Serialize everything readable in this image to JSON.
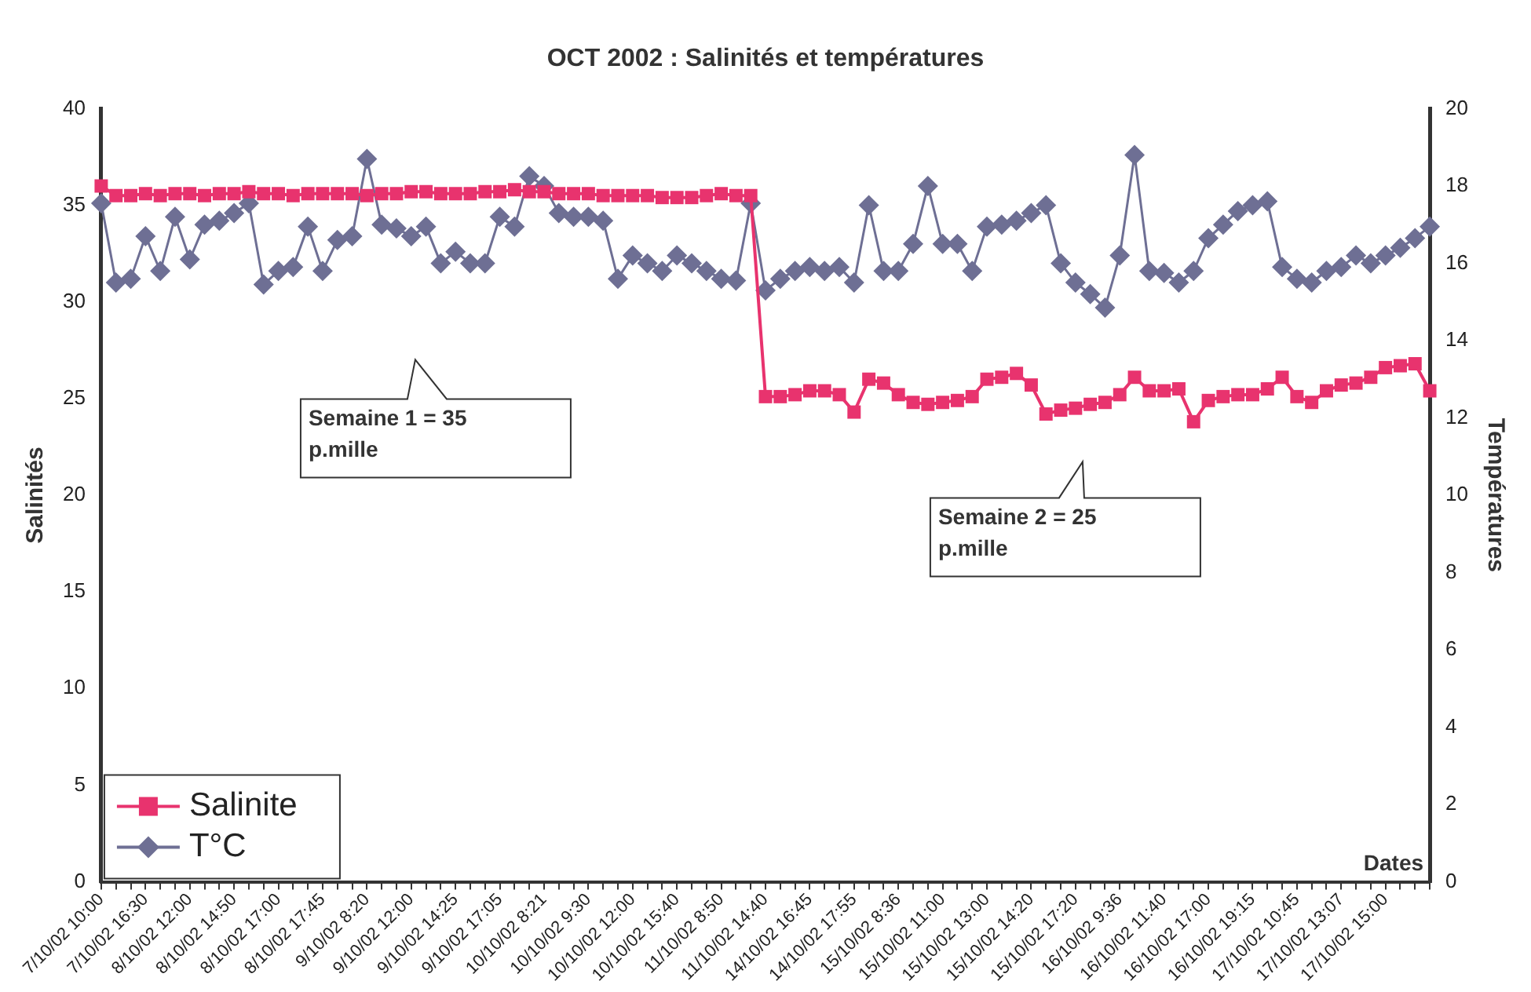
{
  "chart_data": {
    "type": "line",
    "title": "OCT 2002 : Salinités et températures",
    "xlabel": "Dates",
    "ylabel": "Salinités",
    "y2label": "Températures",
    "categories": [
      "7/10/02 10:00",
      null,
      null,
      "7/10/02 16:30",
      null,
      null,
      "8/10/02 12:00",
      null,
      null,
      "8/10/02 14:50",
      null,
      null,
      "8/10/02 17:00",
      null,
      null,
      "8/10/02 17:45",
      null,
      null,
      "9/10/02 8:20",
      null,
      null,
      "9/10/02 12:00",
      null,
      null,
      "9/10/02 14:25",
      null,
      null,
      "9/10/02 17:05",
      null,
      null,
      "10/10/02 8:21",
      null,
      null,
      "10/10/02 9:30",
      null,
      null,
      "10/10/02 12:00",
      null,
      null,
      "10/10/02 15:40",
      null,
      null,
      "11/10/02 8:50",
      null,
      null,
      "11/10/02 14:40",
      null,
      null,
      "14/10/02 16:45",
      null,
      null,
      "14/10/02 17:55",
      null,
      null,
      "15/10/02 8:36",
      null,
      null,
      "15/10/02 11:00",
      null,
      null,
      "15/10/02 13:00",
      null,
      null,
      "15/10/02 14:20",
      null,
      null,
      "15/10/02 17:20",
      null,
      null,
      "16/10/02 9:36",
      null,
      null,
      "16/10/02 11:40",
      null,
      null,
      "16/10/02 17:00",
      null,
      null,
      "16/10/02 19:15",
      null,
      null,
      "17/10/02 10:45",
      null,
      null,
      "17/10/02 13:07",
      null,
      null,
      "17/10/02 15:00",
      null,
      null,
      null
    ],
    "series": [
      {
        "name": "Salinite",
        "color": "#e8336e",
        "marker": "square",
        "values": [
          36,
          35.5,
          35.5,
          35.6,
          35.5,
          35.6,
          35.6,
          35.5,
          35.6,
          35.6,
          35.7,
          35.6,
          35.6,
          35.5,
          35.6,
          35.6,
          35.6,
          35.6,
          35.5,
          35.6,
          35.6,
          35.7,
          35.7,
          35.6,
          35.6,
          35.6,
          35.7,
          35.7,
          35.8,
          35.7,
          35.7,
          35.6,
          35.6,
          35.6,
          35.5,
          35.5,
          35.5,
          35.5,
          35.4,
          35.4,
          35.4,
          35.5,
          35.6,
          35.5,
          35.5,
          25.1,
          25.1,
          25.2,
          25.4,
          25.4,
          25.2,
          24.3,
          26,
          25.8,
          25.2,
          24.8,
          24.7,
          24.8,
          24.9,
          25.1,
          26,
          26.1,
          26.3,
          25.7,
          24.2,
          24.4,
          24.5,
          24.7,
          24.8,
          25.2,
          26.1,
          25.4,
          25.4,
          25.5,
          23.8,
          24.9,
          25.1,
          25.2,
          25.2,
          25.5,
          26.1,
          25.1,
          24.8,
          25.4,
          25.7,
          25.8,
          26.1,
          26.6,
          26.7,
          26.8,
          25.4
        ]
      },
      {
        "name": "T°C",
        "color": "#6e6f94",
        "marker": "diamond",
        "axis": "y2",
        "values": [
          17.55,
          15.5,
          15.6,
          16.7,
          15.8,
          17.2,
          16.1,
          17,
          17.1,
          17.3,
          17.55,
          15.45,
          15.8,
          15.9,
          16.95,
          15.8,
          16.6,
          16.7,
          18.7,
          17,
          16.9,
          16.7,
          16.95,
          16,
          16.3,
          16,
          16,
          17.2,
          16.95,
          18.25,
          18,
          17.3,
          17.2,
          17.2,
          17.1,
          15.6,
          16.2,
          16,
          15.8,
          16.2,
          16,
          15.8,
          15.6,
          15.55,
          17.55,
          15.3,
          15.6,
          15.8,
          15.9,
          15.8,
          15.9,
          15.5,
          17.5,
          15.8,
          15.8,
          16.5,
          18,
          16.5,
          16.5,
          15.8,
          16.95,
          17,
          17.1,
          17.3,
          17.5,
          16,
          15.5,
          15.2,
          14.85,
          16.2,
          18.8,
          15.8,
          15.75,
          15.5,
          15.8,
          16.65,
          17,
          17.35,
          17.5,
          17.6,
          15.9,
          15.6,
          15.5,
          15.8,
          15.9,
          16.2,
          16,
          16.2,
          16.4,
          16.65,
          16.95
        ]
      }
    ],
    "ylim": [
      0,
      40
    ],
    "yticks": [
      0,
      5,
      10,
      15,
      20,
      25,
      30,
      35,
      40
    ],
    "y2lim": [
      0,
      20
    ],
    "y2ticks": [
      0,
      2,
      4,
      6,
      8,
      10,
      12,
      14,
      16,
      18,
      20
    ],
    "annotations": [
      "Semaine 1 = 35\np.mille",
      "Semaine 2 = 25\np.mille"
    ],
    "legend": "bottom left",
    "grid": false,
    "line_style": "solid"
  }
}
